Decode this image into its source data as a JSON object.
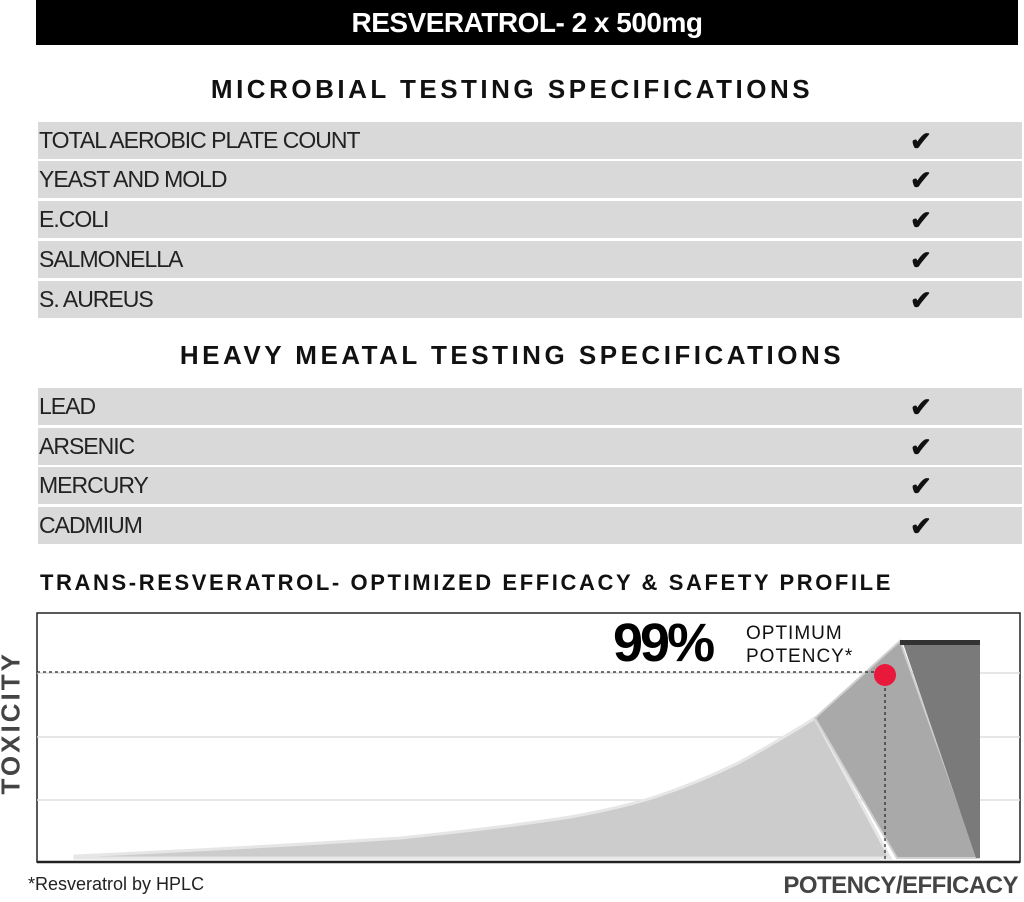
{
  "header": {
    "title": "RESVERATROL- 2 x 500mg"
  },
  "microbial": {
    "title": "MICROBIAL TESTING SPECIFICATIONS",
    "items": [
      {
        "label": "TOTAL AEROBIC PLATE COUNT",
        "check": "✔"
      },
      {
        "label": "YEAST AND MOLD",
        "check": "✔"
      },
      {
        "label": "E.COLI",
        "check": "✔"
      },
      {
        "label": "SALMONELLA",
        "check": "✔"
      },
      {
        "label": "S. AUREUS",
        "check": "✔"
      }
    ]
  },
  "heavy_metal": {
    "title": "HEAVY MEATAL TESTING SPECIFICATIONS",
    "items": [
      {
        "label": "LEAD",
        "check": "✔"
      },
      {
        "label": "ARSENIC",
        "check": "✔"
      },
      {
        "label": "MERCURY",
        "check": "✔"
      },
      {
        "label": "CADMIUM",
        "check": "✔"
      }
    ]
  },
  "chart_data": {
    "type": "area",
    "title": "TRANS-RESVERATROL- OPTIMIZED EFFICACY & SAFETY PROFILE",
    "xlabel": "POTENCY/EFFICACY",
    "ylabel": "TOXICITY",
    "grid": true,
    "annotation": {
      "value": "99%",
      "line1": "OPTIMUM",
      "line2": "POTENCY*"
    },
    "footnote": "*Resveratrol by HPLC",
    "colors": {
      "marker": "#e8193a",
      "light": "#cccccc",
      "mid": "#a9a9a9",
      "dark": "#7a7a7a"
    }
  }
}
